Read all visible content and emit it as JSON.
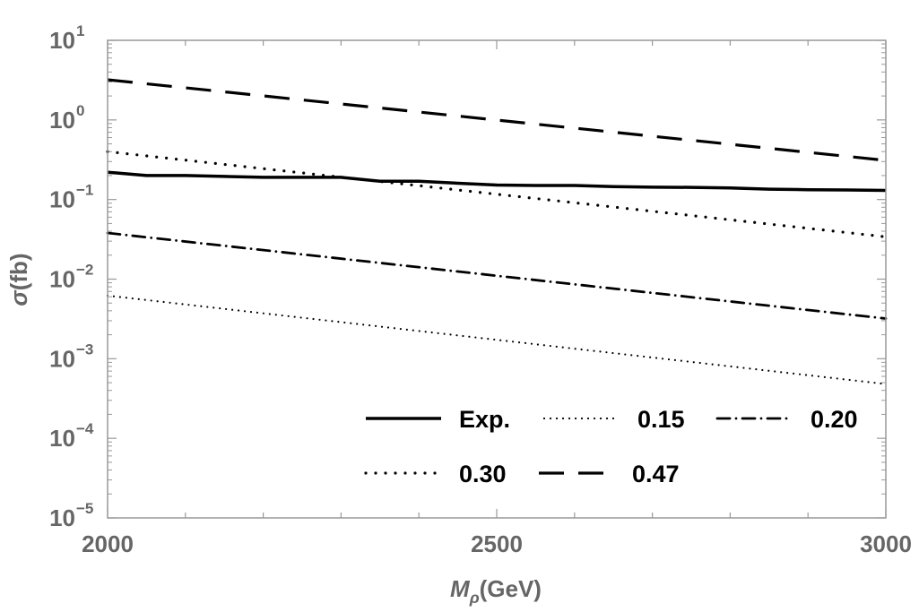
{
  "chart_data": {
    "type": "line",
    "xlabel": {
      "main": "M",
      "sub": "ρ",
      "unit": "(GeV)"
    },
    "ylabel": {
      "main": "σ",
      "unit": "(fb)"
    },
    "xlim": [
      2000,
      3000
    ],
    "ylim": [
      1e-05,
      10
    ],
    "yscale": "log",
    "grid": false,
    "legend_placement": "bottom-right",
    "x_ticks": [
      2000,
      2500,
      3000
    ],
    "x_tick_labels": [
      "2000",
      "2500",
      "3000"
    ],
    "y_ticks": [
      {
        "value": 1e-05,
        "base": "10",
        "exp": "−5"
      },
      {
        "value": 0.0001,
        "base": "10",
        "exp": "−4"
      },
      {
        "value": 0.001,
        "base": "10",
        "exp": "−3"
      },
      {
        "value": 0.01,
        "base": "10",
        "exp": "−2"
      },
      {
        "value": 0.1,
        "base": "10",
        "exp": "−1"
      },
      {
        "value": 1,
        "base": "10",
        "exp": "0"
      },
      {
        "value": 10,
        "base": "10",
        "exp": "1"
      }
    ],
    "series": [
      {
        "name": "Exp.",
        "style": "solid",
        "x": [
          2000,
          2050,
          2100,
          2150,
          2200,
          2250,
          2300,
          2350,
          2400,
          2450,
          2500,
          2550,
          2600,
          2650,
          2700,
          2750,
          2800,
          2850,
          2900,
          2950,
          3000
        ],
        "y": [
          0.22,
          0.2,
          0.2,
          0.195,
          0.19,
          0.19,
          0.19,
          0.17,
          0.17,
          0.16,
          0.152,
          0.15,
          0.15,
          0.145,
          0.143,
          0.142,
          0.14,
          0.135,
          0.133,
          0.132,
          0.13
        ]
      },
      {
        "name": "0.15",
        "style": "dotted",
        "x": [
          2000,
          3000
        ],
        "y": [
          0.0062,
          0.00048
        ]
      },
      {
        "name": "0.20",
        "style": "dashdot",
        "x": [
          2000,
          3000
        ],
        "y": [
          0.038,
          0.0032
        ]
      },
      {
        "name": "0.30",
        "style": "dotted-coarse",
        "x": [
          2000,
          3000
        ],
        "y": [
          0.4,
          0.034
        ]
      },
      {
        "name": "0.47",
        "style": "dashed",
        "x": [
          2000,
          3000
        ],
        "y": [
          3.2,
          0.31
        ]
      }
    ]
  }
}
